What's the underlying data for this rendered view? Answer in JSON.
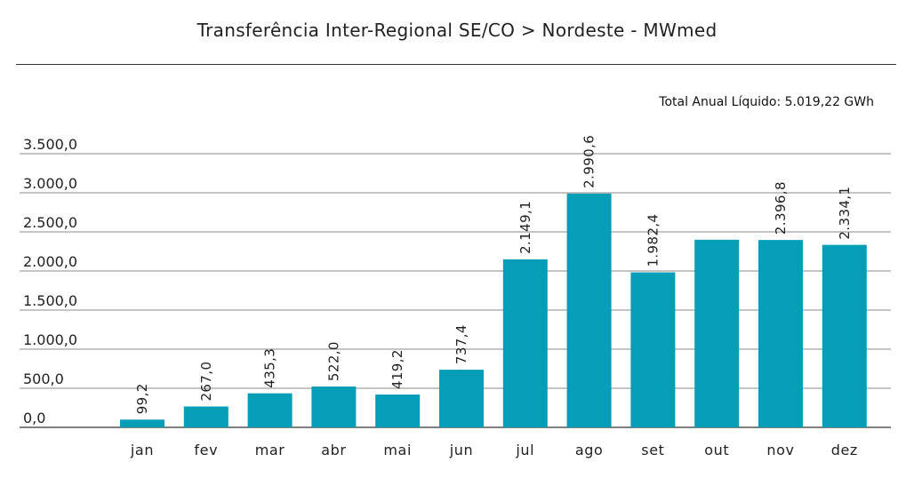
{
  "header": {
    "title": "Transferência Inter-Regional SE/CO > Nordeste - MWmed",
    "annual_total": "Total Anual Líquido: 5.019,22 GWh"
  },
  "colors": {
    "bar": "#069eb6",
    "grid": "#8a8a8a",
    "axis": "#333333"
  },
  "chart_data": {
    "type": "bar",
    "title": "Transferência Inter-Regional SE/CO > Nordeste - MWmed",
    "subtitle": "Total Anual Líquido: 5.019,22 GWh",
    "categories": [
      "jan",
      "fev",
      "mar",
      "abr",
      "mai",
      "jun",
      "jul",
      "ago",
      "set",
      "out",
      "nov",
      "dez"
    ],
    "values": [
      99.2,
      267.0,
      435.3,
      522.0,
      419.2,
      737.4,
      2149.1,
      2990.6,
      1982.4,
      2400.0,
      2396.8,
      2334.1
    ],
    "data_labels": [
      "99,2",
      "267,0",
      "435,3",
      "522,0",
      "419,2",
      "737,4",
      "2.149,1",
      "2.990,6",
      "1.982,4",
      "",
      "2.396,8",
      "2.334,1"
    ],
    "yticks": [
      0,
      500,
      1000,
      1500,
      2000,
      2500,
      3000,
      3500
    ],
    "ytick_labels": [
      "0,0",
      "500,0",
      "1.000,0",
      "1.500,0",
      "2.000,0",
      "2.500,0",
      "3.000,0",
      "3.500,0"
    ],
    "ylim": [
      0,
      3500
    ],
    "xlabel": "",
    "ylabel": "",
    "grid": true,
    "legend": "none"
  }
}
